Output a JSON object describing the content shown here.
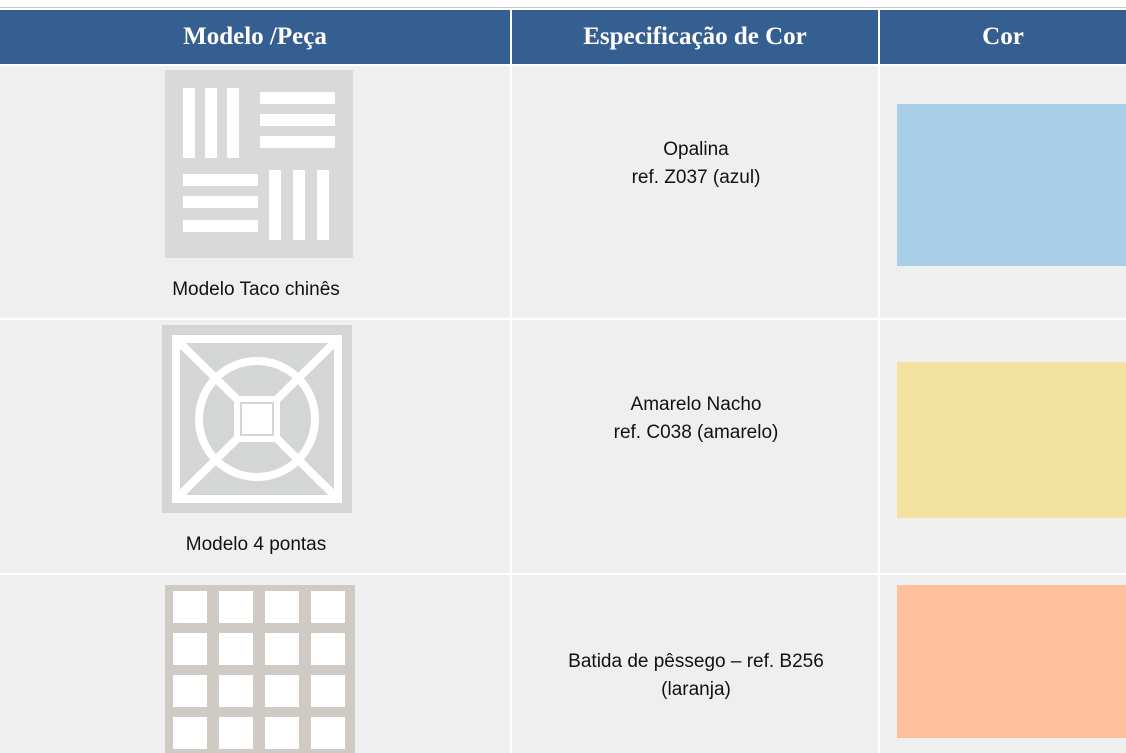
{
  "table": {
    "header": [
      "Modelo /Peça",
      "Especificação de Cor",
      "Cor"
    ],
    "rows": [
      {
        "model": "Modelo Taco chinês",
        "spec": [
          "Opalina",
          "ref. Z037 (azul)"
        ],
        "color": "#a9cfe6"
      },
      {
        "model": "Modelo 4 pontas",
        "spec": [
          "Amarelo Nacho",
          "ref. C038 (amarelo)"
        ],
        "color": "#f4e2a3"
      },
      {
        "spec": [
          "Batida de pêssego – ref. B256",
          "(laranja)"
        ],
        "color": "#fdbf9c"
      }
    ]
  }
}
